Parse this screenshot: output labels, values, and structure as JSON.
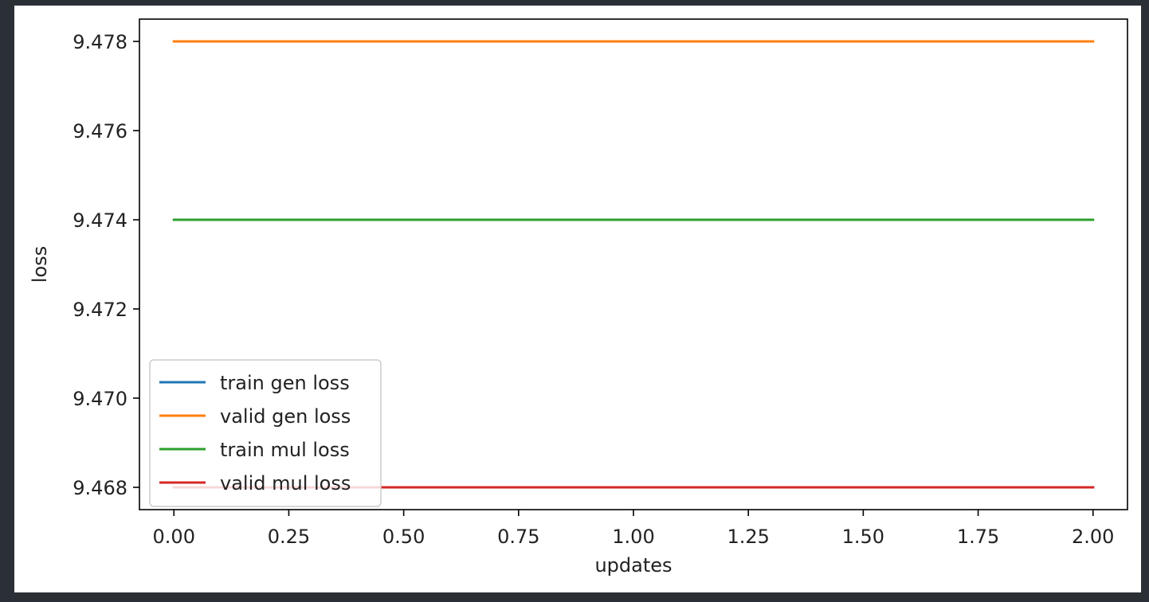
{
  "chart_data": {
    "type": "line",
    "xlabel": "updates",
    "ylabel": "loss",
    "xlim": [
      -0.075,
      2.075
    ],
    "ylim": [
      9.4675,
      9.4785
    ],
    "xticks": [
      0.0,
      0.25,
      0.5,
      0.75,
      1.0,
      1.25,
      1.5,
      1.75,
      2.0
    ],
    "xtick_labels": [
      "0.00",
      "0.25",
      "0.50",
      "0.75",
      "1.00",
      "1.25",
      "1.50",
      "1.75",
      "2.00"
    ],
    "yticks": [
      9.468,
      9.47,
      9.472,
      9.474,
      9.476,
      9.478
    ],
    "ytick_labels": [
      "9.468",
      "9.470",
      "9.472",
      "9.474",
      "9.476",
      "9.478"
    ],
    "grid": false,
    "legend_position": "lower-left",
    "x": [
      0,
      1,
      2
    ],
    "series": [
      {
        "name": "train gen loss",
        "color": "#1f77b4",
        "values": [
          9.468,
          9.468,
          9.468
        ]
      },
      {
        "name": "valid gen loss",
        "color": "#ff7f0e",
        "values": [
          9.478,
          9.478,
          9.478
        ]
      },
      {
        "name": "train mul loss",
        "color": "#2ca02c",
        "values": [
          9.474,
          9.474,
          9.474
        ]
      },
      {
        "name": "valid mul loss",
        "color": "#d62728",
        "values": [
          9.468,
          9.468,
          9.468
        ]
      }
    ]
  }
}
